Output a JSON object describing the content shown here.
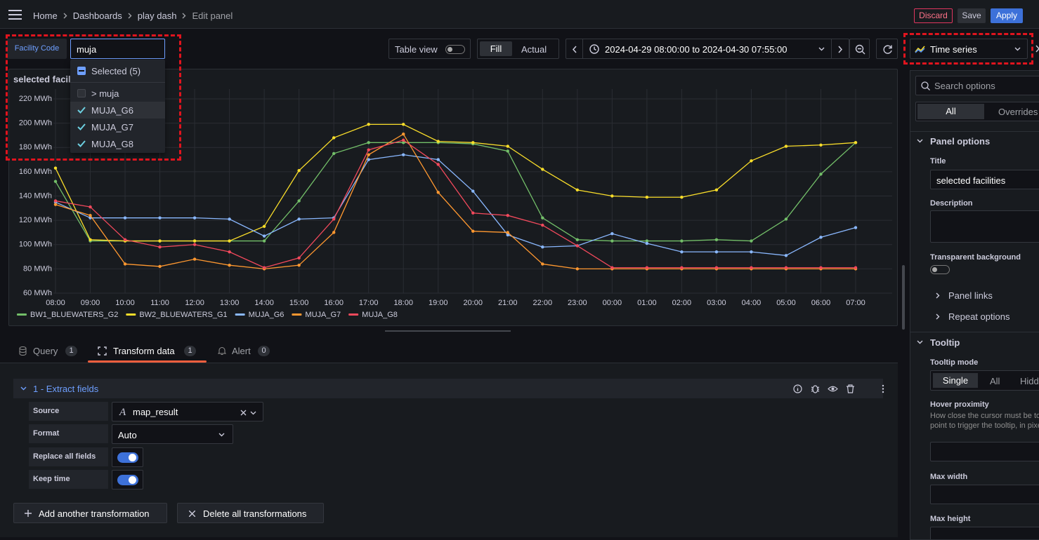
{
  "nav": {
    "breadcrumbs": [
      "Home",
      "Dashboards",
      "play dash",
      "Edit panel"
    ],
    "discard": "Discard",
    "save": "Save",
    "apply": "Apply"
  },
  "toolbar": {
    "variable_label": "Facility Code",
    "variable_value": "muja",
    "table_view": "Table view",
    "fill": "Fill",
    "actual": "Actual",
    "time_range": "2024-04-29 08:00:00 to 2024-04-30 07:55:00",
    "visualization": "Time series"
  },
  "variable_dropdown": {
    "selected": "Selected (5)",
    "options": [
      "> muja",
      "MUJA_G6",
      "MUJA_G7",
      "MUJA_G8"
    ]
  },
  "chart_data": {
    "type": "line",
    "title": "selected facilities",
    "categories": [
      "08:00",
      "09:00",
      "10:00",
      "11:00",
      "12:00",
      "13:00",
      "14:00",
      "15:00",
      "16:00",
      "17:00",
      "18:00",
      "19:00",
      "20:00",
      "21:00",
      "22:00",
      "23:00",
      "00:00",
      "01:00",
      "02:00",
      "03:00",
      "04:00",
      "05:00",
      "06:00",
      "07:00"
    ],
    "series": [
      {
        "name": "BW1_BLUEWATERS_G2",
        "color": "#73bf69",
        "values": [
          152,
          103,
          103,
          103,
          103,
          103,
          103,
          136,
          175,
          184,
          184,
          184,
          183,
          177,
          122,
          104,
          103,
          103,
          103,
          104,
          103,
          121,
          158,
          184
        ]
      },
      {
        "name": "BW2_BLUEWATERS_G1",
        "color": "#fade2a",
        "values": [
          163,
          104,
          103,
          103,
          103,
          103,
          115,
          161,
          188,
          199,
          199,
          185,
          184,
          181,
          162,
          145,
          140,
          139,
          139,
          145,
          169,
          181,
          182,
          184
        ]
      },
      {
        "name": "MUJA_G6",
        "color": "#8ab8ff",
        "values": [
          135,
          122,
          122,
          122,
          122,
          121,
          107,
          121,
          122,
          170,
          174,
          170,
          144,
          108,
          98,
          99,
          109,
          101,
          94,
          94,
          94,
          91,
          106,
          114
        ]
      },
      {
        "name": "MUJA_G7",
        "color": "#ff9830",
        "values": [
          133,
          124,
          84,
          82,
          88,
          83,
          80,
          83,
          110,
          174,
          191,
          143,
          111,
          110,
          84,
          80,
          80,
          80,
          80,
          80,
          80,
          80,
          80,
          80
        ]
      },
      {
        "name": "MUJA_G8",
        "color": "#f2495c",
        "values": [
          136,
          131,
          104,
          98,
          100,
          94,
          81,
          89,
          121,
          178,
          186,
          166,
          126,
          124,
          116,
          99,
          81,
          81,
          81,
          81,
          81,
          81,
          81,
          81
        ]
      }
    ],
    "ylim": [
      60,
      220
    ],
    "yticks": [
      {
        "value": 60,
        "label": "60 MWh"
      },
      {
        "value": 80,
        "label": "80 MWh"
      },
      {
        "value": 100,
        "label": "100 MWh"
      },
      {
        "value": 120,
        "label": "120 MWh"
      },
      {
        "value": 140,
        "label": "140 MWh"
      },
      {
        "value": 160,
        "label": "160 MWh"
      },
      {
        "value": 180,
        "label": "180 MWh"
      },
      {
        "value": 200,
        "label": "200 MWh"
      },
      {
        "value": 220,
        "label": "220 MWh"
      }
    ],
    "grid": true,
    "legend": "bottom"
  },
  "tabs": [
    {
      "label": "Query",
      "count": 1
    },
    {
      "label": "Transform data",
      "count": 1
    },
    {
      "label": "Alert",
      "count": 0
    }
  ],
  "transformation": {
    "title": "1 - Extract fields",
    "source_label": "Source",
    "source_value": "map_result",
    "format_label": "Format",
    "format_value": "Auto",
    "replace_label": "Replace all fields",
    "keep_time_label": "Keep time",
    "add_button": "Add another transformation",
    "delete_button": "Delete all transformations"
  },
  "options": {
    "search_placeholder": "Search options",
    "tab_all": "All",
    "tab_overrides": "Overrides",
    "panel_options": "Panel options",
    "title_label": "Title",
    "title_value": "selected facilities",
    "description_label": "Description",
    "transparent_label": "Transparent background",
    "panel_links": "Panel links",
    "repeat_options": "Repeat options",
    "tooltip": "Tooltip",
    "tooltip_mode_label": "Tooltip mode",
    "tooltip_modes": [
      "Single",
      "All",
      "Hidden"
    ],
    "hover_label": "Hover proximity",
    "hover_description": "How close the cursor must be to a point to trigger the tooltip, in pixels",
    "max_width_label": "Max width",
    "max_height_label": "Max height"
  }
}
